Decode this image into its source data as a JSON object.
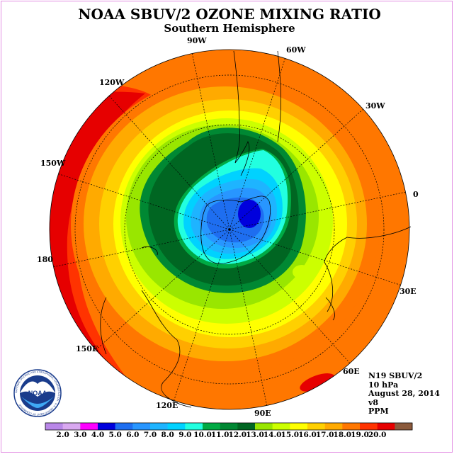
{
  "title": "NOAA SBUV/2 OZONE MIXING RATIO",
  "subtitle": "Southern Hemisphere",
  "longitude_labels": [
    "90W",
    "60W",
    "30W",
    "0",
    "30E",
    "60E",
    "90E",
    "120E",
    "150E",
    "180",
    "150W",
    "120W"
  ],
  "info": {
    "satellite": "N19 SBUV/2",
    "level": "10 hPa",
    "date": "August 28, 2014",
    "version": "v8",
    "units": "PPM"
  },
  "logo": {
    "text": "NOAA",
    "ring_text": "NATIONAL OCEANIC AND ATMOSPHERIC ADMINISTRATION · U.S. DEPARTMENT OF COMMERCE"
  },
  "colorbar": {
    "ticks": [
      "2.0",
      "3.0",
      "4.0",
      "5.0",
      "6.0",
      "7.0",
      "8.0",
      "9.0",
      "10.0",
      "11.0",
      "12.0",
      "13.0",
      "14.0",
      "15.0",
      "16.0",
      "17.0",
      "18.0",
      "19.0",
      "20.0"
    ],
    "colors": [
      "#b987e8",
      "#d9a8f0",
      "#ff00ff",
      "#0000dd",
      "#1e6ef0",
      "#2896ff",
      "#1eb4ff",
      "#00d2ff",
      "#22ffe0",
      "#00aa44",
      "#008833",
      "#006622",
      "#99e600",
      "#ccff00",
      "#ffff00",
      "#ffd000",
      "#ffaa00",
      "#ff7700",
      "#ff3300",
      "#e60000",
      "#8b5a3c"
    ]
  },
  "palette": {
    "c11": "#006622",
    "c12": "#008833",
    "c13": "#99e600",
    "c14": "#ccff00",
    "c15": "#ffff00",
    "c16": "#ffd000",
    "c17": "#ffaa00",
    "c18": "#ff7700",
    "c19": "#ff3300",
    "c20": "#e60000",
    "c10": "#00aa44",
    "c9": "#22ffe0",
    "c8": "#00d2ff",
    "c7": "#1eb4ff",
    "c6": "#2896ff",
    "c5": "#1e6ef0",
    "c4": "#0000dd"
  }
}
